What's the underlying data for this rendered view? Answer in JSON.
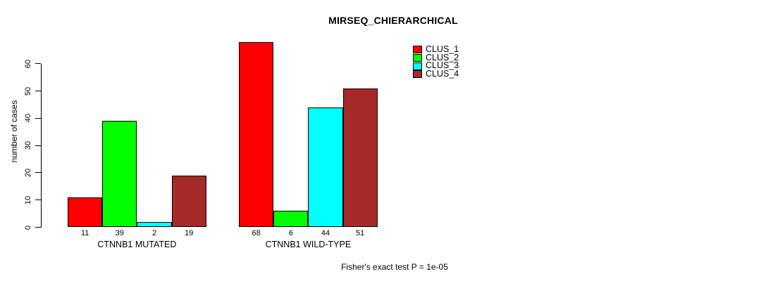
{
  "chart_data": {
    "type": "bar",
    "title": "MIRSEQ_CHIERARCHICAL",
    "xlabel": "",
    "ylabel": "number of cases",
    "ylim": [
      0,
      68
    ],
    "yticks": [
      0,
      10,
      20,
      30,
      40,
      50,
      60
    ],
    "grid": false,
    "legend_position": "top-right",
    "categories": [
      "CTNNB1 MUTATED",
      "CTNNB1 WILD-TYPE"
    ],
    "series": [
      {
        "name": "CLUS_1",
        "color": "#FF0000",
        "values": [
          11,
          68
        ]
      },
      {
        "name": "CLUS_2",
        "color": "#00FF00",
        "values": [
          39,
          6
        ]
      },
      {
        "name": "CLUS_3",
        "color": "#00FFFF",
        "values": [
          2,
          44
        ]
      },
      {
        "name": "CLUS_4",
        "color": "#A52A2A",
        "values": [
          19,
          51
        ]
      }
    ],
    "bar_value_labels": {
      "CTNNB1 MUTATED": [
        11,
        39,
        2,
        19
      ],
      "CTNNB1 WILD-TYPE": [
        68,
        6,
        44,
        51
      ]
    },
    "annotation": "Fisher's exact test P = 1e-05"
  }
}
